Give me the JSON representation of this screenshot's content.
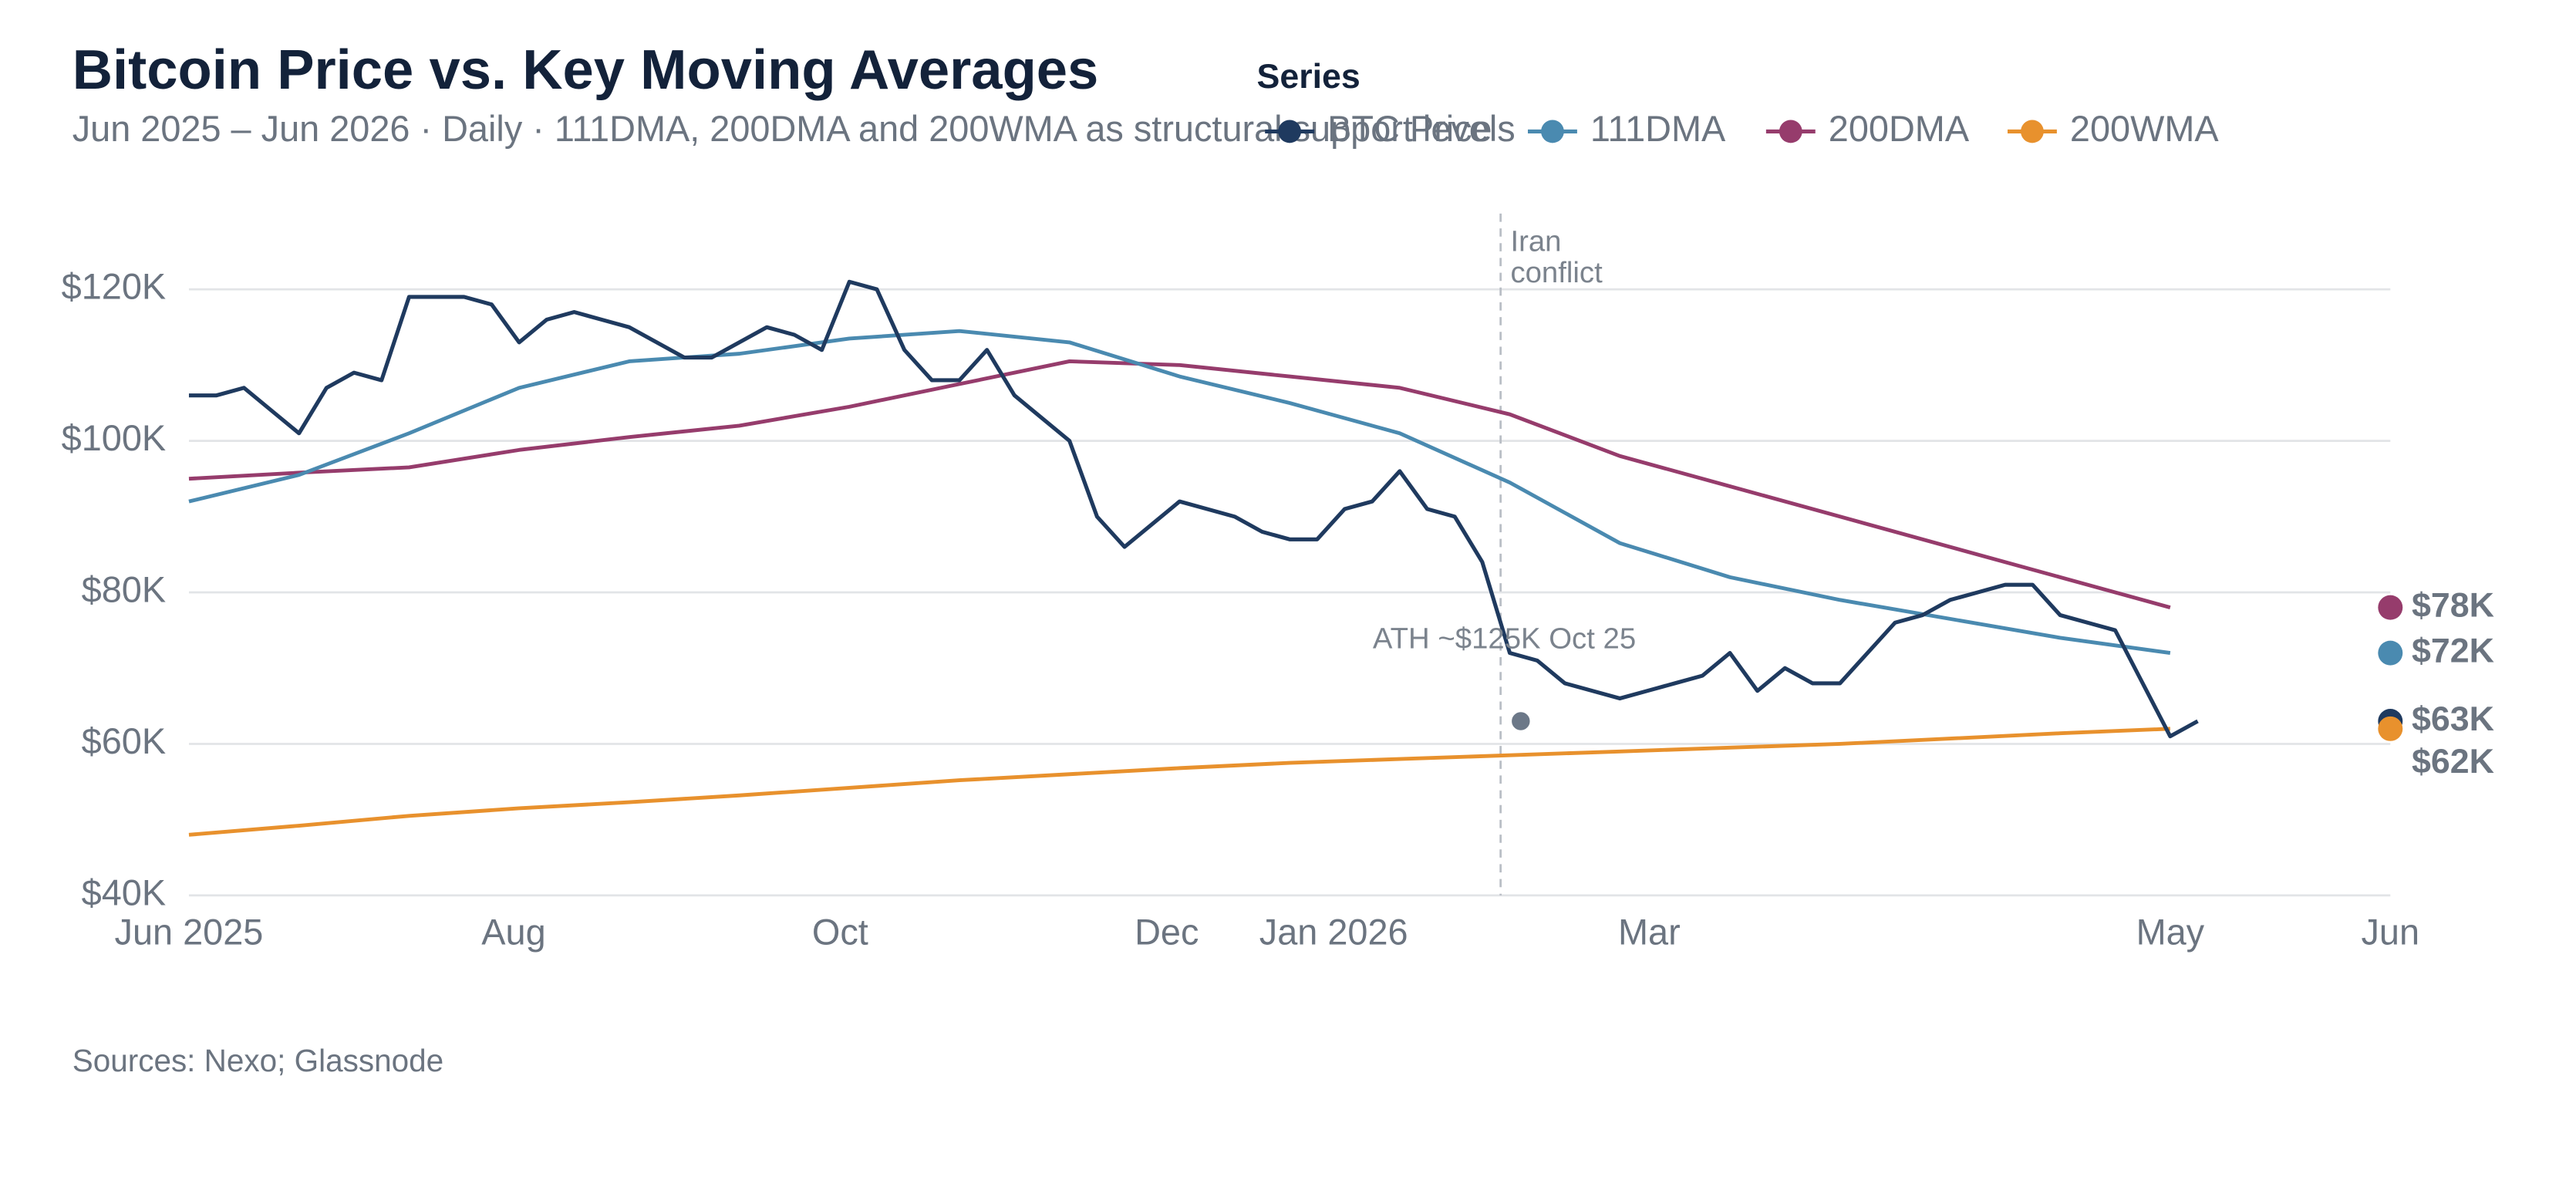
{
  "chart_data": {
    "type": "line",
    "title": "Bitcoin Price vs. Key Moving Averages",
    "subtitle": "Jun 2025 – Jun 2026 · Daily · 111DMA, 200DMA and 200WMA as structural support levels",
    "legend_title": "Series",
    "source": "Sources: Nexo; Glassnode",
    "xlim": [
      0,
      12
    ],
    "xticks": [
      {
        "value": 0,
        "label": "Jun 2025"
      },
      {
        "value": 1.77,
        "label": "Aug"
      },
      {
        "value": 3.55,
        "label": "Oct"
      },
      {
        "value": 5.33,
        "label": "Dec"
      },
      {
        "value": 6.24,
        "label": "Jan 2026"
      },
      {
        "value": 7.96,
        "label": "Mar"
      },
      {
        "value": 10.8,
        "label": "May"
      },
      {
        "value": 12,
        "label": "Jun"
      }
    ],
    "ylim": [
      40000,
      130000
    ],
    "yticks": [
      {
        "value": 40000,
        "label": "$40K"
      },
      {
        "value": 60000,
        "label": "$60K"
      },
      {
        "value": 80000,
        "label": "$80K"
      },
      {
        "value": 100000,
        "label": "$100K"
      },
      {
        "value": 120000,
        "label": "$120K"
      }
    ],
    "grid": true,
    "series": [
      {
        "name": "BTC Price",
        "color": "#1f3a5f",
        "end_label": "$63K",
        "x": [
          0,
          0.15,
          0.3,
          0.45,
          0.6,
          0.75,
          0.9,
          1.05,
          1.2,
          1.35,
          1.5,
          1.65,
          1.8,
          1.95,
          2.1,
          2.25,
          2.4,
          2.55,
          2.7,
          2.85,
          3,
          3.15,
          3.3,
          3.45,
          3.6,
          3.75,
          3.9,
          4.05,
          4.2,
          4.35,
          4.5,
          4.65,
          4.8,
          4.95,
          5.1,
          5.25,
          5.4,
          5.55,
          5.7,
          5.85,
          6,
          6.15,
          6.3,
          6.45,
          6.6,
          6.75,
          6.9,
          7.05,
          7.2,
          7.35,
          7.5,
          7.65,
          7.8,
          7.95,
          8.1,
          8.25,
          8.4,
          8.55,
          8.7,
          8.85,
          9,
          9.15,
          9.3,
          9.45,
          9.6,
          9.75,
          9.9,
          10.05,
          10.2,
          10.35,
          10.5,
          10.65,
          10.8,
          10.95
        ],
        "values": [
          106000,
          106000,
          107000,
          104000,
          101000,
          107000,
          109000,
          108000,
          119000,
          119000,
          119000,
          118000,
          113000,
          116000,
          117000,
          116000,
          115000,
          113000,
          111000,
          111000,
          113000,
          115000,
          114000,
          112000,
          121000,
          120000,
          112000,
          108000,
          108000,
          112000,
          106000,
          103000,
          100000,
          90000,
          86000,
          89000,
          92000,
          91000,
          90000,
          88000,
          87000,
          87000,
          91000,
          92000,
          96000,
          91000,
          90000,
          84000,
          72000,
          71000,
          68000,
          67000,
          66000,
          67000,
          68000,
          69000,
          72000,
          67000,
          70000,
          68000,
          68000,
          72000,
          76000,
          77000,
          79000,
          80000,
          81000,
          81000,
          77000,
          76000,
          75000,
          68000,
          61000,
          63000
        ]
      },
      {
        "name": "111DMA",
        "color": "#4a8ab0",
        "end_label": "$72K",
        "x": [
          0,
          0.6,
          1.2,
          1.8,
          2.4,
          3,
          3.6,
          4.2,
          4.8,
          5.4,
          6,
          6.6,
          7.2,
          7.8,
          8.4,
          9,
          9.6,
          10.2,
          10.8
        ],
        "values": [
          92000,
          95500,
          101000,
          107000,
          110500,
          111500,
          113500,
          114500,
          113000,
          108500,
          105000,
          101000,
          94500,
          86500,
          82000,
          79000,
          76500,
          74000,
          72000
        ]
      },
      {
        "name": "200DMA",
        "color": "#963c6c",
        "end_label": "$78K",
        "x": [
          0,
          0.6,
          1.2,
          1.8,
          2.4,
          3,
          3.6,
          4.2,
          4.8,
          5.4,
          6,
          6.6,
          7.2,
          7.8,
          8.4,
          9,
          9.6,
          10.2,
          10.8
        ],
        "values": [
          95000,
          95800,
          96500,
          98800,
          100500,
          102000,
          104500,
          107500,
          110500,
          110000,
          108500,
          107000,
          103500,
          98000,
          94000,
          90000,
          86000,
          82000,
          78000
        ]
      },
      {
        "name": "200WMA",
        "color": "#e8912d",
        "end_label": "$62K",
        "x": [
          0,
          0.6,
          1.2,
          1.8,
          2.4,
          3,
          3.6,
          4.2,
          4.8,
          5.4,
          6,
          6.6,
          7.2,
          7.8,
          8.4,
          9,
          9.6,
          10.2,
          10.8
        ],
        "values": [
          48000,
          49200,
          50500,
          51500,
          52300,
          53200,
          54200,
          55200,
          56000,
          56800,
          57500,
          58000,
          58500,
          59000,
          59500,
          60000,
          60700,
          61400,
          62000
        ]
      }
    ],
    "annotations": [
      {
        "x": 7.15,
        "lines": [
          "Iran",
          "conflict"
        ]
      },
      {
        "x": 7.26,
        "y": 63000,
        "text": "ATH ~$125K Oct 25"
      }
    ]
  }
}
